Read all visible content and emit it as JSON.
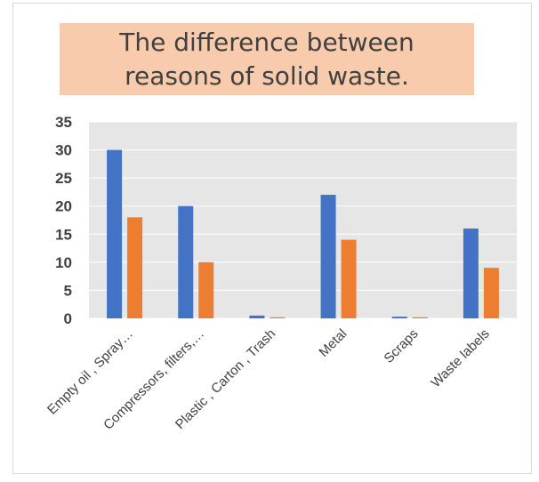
{
  "chart_data": {
    "type": "bar",
    "title": "The difference between reasons of solid waste.",
    "categories": [
      "Empty oil , Spray…",
      "Compressors, filters,…",
      "Plastic , Carton , Trash",
      "Metal",
      "Scraps",
      "Waste labels"
    ],
    "series": [
      {
        "values": [
          30,
          20,
          0.5,
          22,
          0.3,
          16
        ],
        "color": "#4472c4"
      },
      {
        "values": [
          18,
          10,
          0.2,
          14,
          0.2,
          9
        ],
        "color": "#ed7d31"
      }
    ],
    "ylim": [
      0,
      35
    ],
    "yticks": [
      "0",
      "5",
      "10",
      "15",
      "20",
      "25",
      "30",
      "35"
    ],
    "grid": true,
    "plot_background": "#e7e6e6",
    "title_background": "#f8cbad"
  }
}
